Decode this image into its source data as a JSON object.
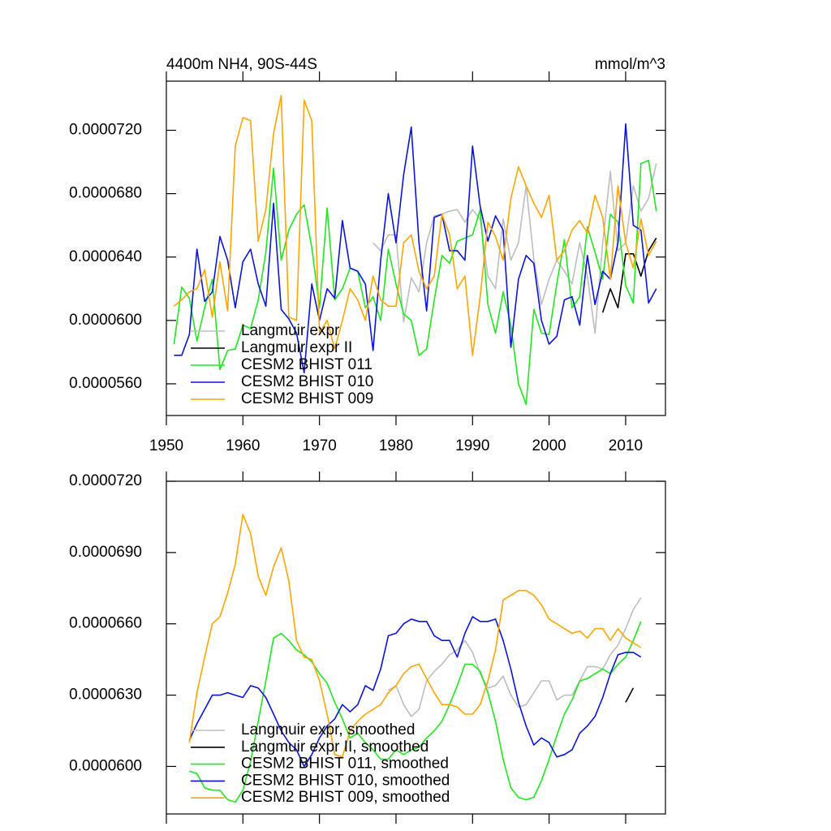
{
  "chart_data": [
    {
      "type": "line",
      "title": "4400m NH4, 90S-44S",
      "y_units": "mmol/m^3",
      "x": [
        1951,
        1952,
        1953,
        1954,
        1955,
        1956,
        1957,
        1958,
        1959,
        1960,
        1961,
        1962,
        1963,
        1964,
        1965,
        1966,
        1967,
        1968,
        1969,
        1970,
        1971,
        1972,
        1973,
        1974,
        1975,
        1976,
        1977,
        1978,
        1979,
        1980,
        1981,
        1982,
        1983,
        1984,
        1985,
        1986,
        1987,
        1988,
        1989,
        1990,
        1991,
        1992,
        1993,
        1994,
        1995,
        1996,
        1997,
        1998,
        1999,
        2000,
        2001,
        2002,
        2003,
        2004,
        2005,
        2006,
        2007,
        2008,
        2009,
        2010,
        2011,
        2012,
        2013,
        2014
      ],
      "xlim": [
        1950,
        2015.2
      ],
      "xticks": [
        1950,
        1960,
        1970,
        1980,
        1990,
        2000,
        2010
      ],
      "ylim": [
        5.4e-05,
        7.51e-05
      ],
      "yticks": [
        {
          "value": 5.6e-05,
          "label": "0.0000560"
        },
        {
          "value": 6e-05,
          "label": "0.0000600"
        },
        {
          "value": 6.4e-05,
          "label": "0.0000640"
        },
        {
          "value": 6.8e-05,
          "label": "0.0000680"
        },
        {
          "value": 7.2e-05,
          "label": "0.0000720"
        }
      ],
      "series": [
        {
          "name": "Langmuir expr",
          "color": "#bdbdbd",
          "values": [
            null,
            null,
            null,
            null,
            null,
            null,
            null,
            null,
            null,
            null,
            null,
            null,
            null,
            null,
            null,
            null,
            null,
            null,
            null,
            null,
            null,
            null,
            null,
            null,
            null,
            null,
            6.49e-05,
            6.44e-05,
            6.54e-05,
            6.54e-05,
            5.99e-05,
            6.27e-05,
            6.18e-05,
            6.49e-05,
            6.66e-05,
            6.67e-05,
            6.69e-05,
            6.7e-05,
            6.62e-05,
            6.7e-05,
            6.64e-05,
            6.28e-05,
            6.2e-05,
            6.64e-05,
            6.38e-05,
            6.49e-05,
            6.85e-05,
            6.39e-05,
            6.1e-05,
            6.26e-05,
            6.38e-05,
            6.31e-05,
            6.23e-05,
            6.49e-05,
            6.28e-05,
            5.92e-05,
            6.49e-05,
            6.94e-05,
            6.44e-05,
            6.49e-05,
            6.85e-05,
            6.69e-05,
            6.77e-05,
            6.99e-05
          ]
        },
        {
          "name": "Langmuir expr II",
          "color": "#000000",
          "values": [
            null,
            null,
            null,
            null,
            null,
            null,
            null,
            null,
            null,
            null,
            null,
            null,
            null,
            null,
            null,
            null,
            null,
            null,
            null,
            null,
            null,
            null,
            null,
            null,
            null,
            null,
            null,
            null,
            null,
            null,
            null,
            null,
            null,
            null,
            null,
            null,
            null,
            null,
            null,
            null,
            null,
            null,
            null,
            null,
            null,
            null,
            null,
            null,
            null,
            null,
            null,
            null,
            null,
            null,
            null,
            null,
            6.05e-05,
            6.2e-05,
            6.08e-05,
            6.42e-05,
            6.42e-05,
            6.28e-05,
            6.44e-05,
            6.52e-05
          ]
        },
        {
          "name": "CESM2 BHIST 011",
          "color": "#1ee81e",
          "values": [
            5.85e-05,
            6.21e-05,
            6.14e-05,
            5.87e-05,
            6.08e-05,
            6.26e-05,
            5.69e-05,
            5.81e-05,
            5.82e-05,
            5.97e-05,
            5.95e-05,
            6.13e-05,
            6.43e-05,
            6.96e-05,
            6.38e-05,
            6.57e-05,
            6.67e-05,
            6.73e-05,
            6.46e-05,
            6.08e-05,
            6.71e-05,
            6.13e-05,
            6.2e-05,
            6.33e-05,
            6.31e-05,
            6.08e-05,
            6.15e-05,
            6e-05,
            6.45e-05,
            6.23e-05,
            6.04e-05,
            6e-05,
            5.78e-05,
            5.82e-05,
            6.13e-05,
            6.41e-05,
            6.36e-05,
            6.5e-05,
            6.52e-05,
            6.54e-05,
            6.7e-05,
            6.1e-05,
            5.92e-05,
            6.18e-05,
            5.97e-05,
            5.6e-05,
            5.47e-05,
            6.07e-05,
            5.92e-05,
            5.91e-05,
            6.23e-05,
            6.51e-05,
            6.08e-05,
            6.15e-05,
            6.59e-05,
            6.43e-05,
            6.26e-05,
            6.67e-05,
            6.62e-05,
            6.22e-05,
            6.11e-05,
            6.99e-05,
            7.01e-05,
            6.69e-05
          ]
        },
        {
          "name": "CESM2 BHIST 010",
          "color": "#0a14dc",
          "values": [
            5.78e-05,
            5.78e-05,
            5.91e-05,
            6.45e-05,
            6.12e-05,
            6.18e-05,
            6.53e-05,
            6.38e-05,
            6.08e-05,
            6.37e-05,
            6.45e-05,
            6.23e-05,
            6.09e-05,
            6.74e-05,
            6.07e-05,
            6.01e-05,
            5.92e-05,
            5.67e-05,
            6.23e-05,
            6e-05,
            6.2e-05,
            6.14e-05,
            6.63e-05,
            6.33e-05,
            6.31e-05,
            6.23e-05,
            5.81e-05,
            6.38e-05,
            6.8e-05,
            6.49e-05,
            6.92e-05,
            7.22e-05,
            6.49e-05,
            6.06e-05,
            6.65e-05,
            6.67e-05,
            6.44e-05,
            6.44e-05,
            6.38e-05,
            7.1e-05,
            6.72e-05,
            6.5e-05,
            6.66e-05,
            6.57e-05,
            5.83e-05,
            6.26e-05,
            6.41e-05,
            6.36e-05,
            6e-05,
            5.85e-05,
            5.9e-05,
            6.13e-05,
            6.15e-05,
            5.97e-05,
            6.41e-05,
            6.1e-05,
            6.31e-05,
            6.26e-05,
            6.49e-05,
            7.24e-05,
            6.6e-05,
            6.57e-05,
            6.11e-05,
            6.2e-05
          ]
        },
        {
          "name": "CESM2 BHIST 009",
          "color": "#ffa500",
          "values": [
            6.09e-05,
            6.13e-05,
            6.18e-05,
            6.2e-05,
            6.32e-05,
            6.02e-05,
            6.37e-05,
            6.06e-05,
            7.1e-05,
            7.28e-05,
            7.26e-05,
            6.5e-05,
            6.7e-05,
            7.18e-05,
            7.42e-05,
            6.02e-05,
            6e-05,
            7.39e-05,
            7.26e-05,
            5.92e-05,
            6e-05,
            5.82e-05,
            6e-05,
            6.2e-05,
            6.13e-05,
            6e-05,
            6.28e-05,
            6.13e-05,
            6.09e-05,
            6.09e-05,
            6.49e-05,
            6.54e-05,
            6.31e-05,
            6.2e-05,
            6.28e-05,
            6.67e-05,
            6.54e-05,
            6.2e-05,
            6.28e-05,
            5.78e-05,
            6.15e-05,
            6.62e-05,
            6.53e-05,
            6.38e-05,
            6.77e-05,
            6.97e-05,
            6.85e-05,
            6.74e-05,
            6.65e-05,
            6.79e-05,
            6.38e-05,
            6.44e-05,
            6.57e-05,
            6.63e-05,
            6.55e-05,
            6.79e-05,
            6.65e-05,
            6.26e-05,
            6.85e-05,
            6.49e-05,
            6.33e-05,
            6.64e-05,
            6.41e-05,
            6.5e-05
          ]
        }
      ]
    },
    {
      "type": "line",
      "x": [
        1953,
        1954,
        1955,
        1956,
        1957,
        1958,
        1959,
        1960,
        1961,
        1962,
        1963,
        1964,
        1965,
        1966,
        1967,
        1968,
        1969,
        1970,
        1971,
        1972,
        1973,
        1974,
        1975,
        1976,
        1977,
        1978,
        1979,
        1980,
        1981,
        1982,
        1983,
        1984,
        1985,
        1986,
        1987,
        1988,
        1989,
        1990,
        1991,
        1992,
        1993,
        1994,
        1995,
        1996,
        1997,
        1998,
        1999,
        2000,
        2001,
        2002,
        2003,
        2004,
        2005,
        2006,
        2007,
        2008,
        2009,
        2010,
        2011,
        2012
      ],
      "xlim": [
        1950,
        2015.2
      ],
      "ylim": [
        5.8e-05,
        7.2e-05
      ],
      "yticks": [
        {
          "value": 6e-05,
          "label": "0.0000600"
        },
        {
          "value": 6.3e-05,
          "label": "0.0000630"
        },
        {
          "value": 6.6e-05,
          "label": "0.0000660"
        },
        {
          "value": 6.9e-05,
          "label": "0.0000690"
        },
        {
          "value": 7.2e-05,
          "label": "0.0000720"
        }
      ],
      "series": [
        {
          "name": "Langmuir expr, smoothed",
          "color": "#bdbdbd",
          "values": [
            null,
            null,
            null,
            null,
            null,
            null,
            null,
            null,
            null,
            null,
            null,
            null,
            null,
            null,
            null,
            null,
            null,
            null,
            null,
            null,
            null,
            null,
            null,
            null,
            null,
            null,
            6.32e-05,
            6.34e-05,
            6.26e-05,
            6.21e-05,
            6.24e-05,
            6.36e-05,
            6.4e-05,
            6.43e-05,
            6.47e-05,
            6.49e-05,
            6.53e-05,
            6.48e-05,
            6.39e-05,
            6.33e-05,
            6.34e-05,
            6.38e-05,
            6.3e-05,
            6.25e-05,
            6.26e-05,
            6.31e-05,
            6.36e-05,
            6.36e-05,
            6.28e-05,
            6.3e-05,
            6.3e-05,
            6.36e-05,
            6.42e-05,
            6.42e-05,
            6.41e-05,
            6.47e-05,
            6.51e-05,
            6.58e-05,
            6.66e-05,
            6.71e-05
          ]
        },
        {
          "name": "Langmuir expr II, smoothed",
          "color": "#000000",
          "values": [
            null,
            null,
            null,
            null,
            null,
            null,
            null,
            null,
            null,
            null,
            null,
            null,
            null,
            null,
            null,
            null,
            null,
            null,
            null,
            null,
            null,
            null,
            null,
            null,
            null,
            null,
            null,
            null,
            null,
            null,
            null,
            null,
            null,
            null,
            null,
            null,
            null,
            null,
            null,
            null,
            null,
            null,
            null,
            null,
            null,
            null,
            null,
            null,
            null,
            null,
            null,
            null,
            null,
            null,
            null,
            null,
            null,
            6.27e-05,
            6.33e-05,
            null
          ]
        },
        {
          "name": "CESM2 BHIST 011, smoothed",
          "color": "#1ee81e",
          "values": [
            5.98e-05,
            5.97e-05,
            5.91e-05,
            5.9e-05,
            5.9e-05,
            5.86e-05,
            5.85e-05,
            5.9e-05,
            6.02e-05,
            6.19e-05,
            6.36e-05,
            6.54e-05,
            6.56e-05,
            6.53e-05,
            6.49e-05,
            6.47e-05,
            6.44e-05,
            6.39e-05,
            6.35e-05,
            6.27e-05,
            6.2e-05,
            6.12e-05,
            6.14e-05,
            6.1e-05,
            6.07e-05,
            6.03e-05,
            6.03e-05,
            6.07e-05,
            6.05e-05,
            6.07e-05,
            6.08e-05,
            6.12e-05,
            6.15e-05,
            6.19e-05,
            6.26e-05,
            6.34e-05,
            6.43e-05,
            6.43e-05,
            6.4e-05,
            6.31e-05,
            6.19e-05,
            6.03e-05,
            5.91e-05,
            5.87e-05,
            5.86e-05,
            5.87e-05,
            5.94e-05,
            6.03e-05,
            6.13e-05,
            6.22e-05,
            6.28e-05,
            6.36e-05,
            6.37e-05,
            6.39e-05,
            6.41e-05,
            6.39e-05,
            6.43e-05,
            6.46e-05,
            6.53e-05,
            6.61e-05
          ]
        },
        {
          "name": "CESM2 BHIST 010, smoothed",
          "color": "#0a14dc",
          "values": [
            6.11e-05,
            6.18e-05,
            6.24e-05,
            6.3e-05,
            6.3e-05,
            6.31e-05,
            6.3e-05,
            6.29e-05,
            6.34e-05,
            6.33e-05,
            6.29e-05,
            6.22e-05,
            6.15e-05,
            6.1e-05,
            6.07e-05,
            6e-05,
            6.05e-05,
            6.12e-05,
            6.17e-05,
            6.2e-05,
            6.26e-05,
            6.23e-05,
            6.26e-05,
            6.34e-05,
            6.32e-05,
            6.41e-05,
            6.55e-05,
            6.56e-05,
            6.6e-05,
            6.62e-05,
            6.61e-05,
            6.61e-05,
            6.55e-05,
            6.53e-05,
            6.53e-05,
            6.46e-05,
            6.56e-05,
            6.63e-05,
            6.61e-05,
            6.61e-05,
            6.62e-05,
            6.53e-05,
            6.41e-05,
            6.27e-05,
            6.17e-05,
            6.09e-05,
            6.12e-05,
            6.1e-05,
            6.04e-05,
            6.05e-05,
            6.07e-05,
            6.14e-05,
            6.17e-05,
            6.21e-05,
            6.29e-05,
            6.39e-05,
            6.47e-05,
            6.48e-05,
            6.48e-05,
            6.46e-05
          ]
        },
        {
          "name": "CESM2 BHIST 009, smoothed",
          "color": "#ffa500",
          "values": [
            6.1e-05,
            6.31e-05,
            6.46e-05,
            6.6e-05,
            6.63e-05,
            6.73e-05,
            6.85e-05,
            7.06e-05,
            6.98e-05,
            6.8e-05,
            6.72e-05,
            6.84e-05,
            6.92e-05,
            6.78e-05,
            6.53e-05,
            6.46e-05,
            6.45e-05,
            6.36e-05,
            6.22e-05,
            6.05e-05,
            6.04e-05,
            6.15e-05,
            6.19e-05,
            6.22e-05,
            6.24e-05,
            6.26e-05,
            6.31e-05,
            6.34e-05,
            6.39e-05,
            6.42e-05,
            6.43e-05,
            6.37e-05,
            6.31e-05,
            6.26e-05,
            6.26e-05,
            6.25e-05,
            6.22e-05,
            6.22e-05,
            6.26e-05,
            6.36e-05,
            6.49e-05,
            6.7e-05,
            6.72e-05,
            6.74e-05,
            6.74e-05,
            6.72e-05,
            6.68e-05,
            6.62e-05,
            6.6e-05,
            6.58e-05,
            6.56e-05,
            6.57e-05,
            6.54e-05,
            6.58e-05,
            6.58e-05,
            6.53e-05,
            6.58e-05,
            6.54e-05,
            6.52e-05,
            6.5e-05
          ]
        }
      ]
    }
  ]
}
